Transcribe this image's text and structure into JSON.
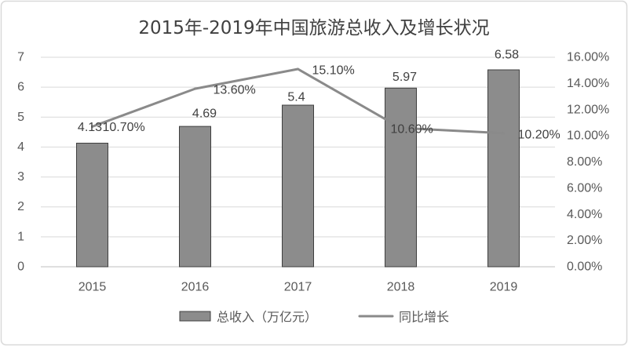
{
  "chart_data": {
    "type": "bar",
    "title": "2015年-2019年中国旅游总收入及增长状况",
    "categories": [
      "2015",
      "2016",
      "2017",
      "2018",
      "2019"
    ],
    "series": [
      {
        "name": "总收入（万亿元）",
        "type": "bar",
        "axis": "left",
        "values": [
          4.13,
          4.69,
          5.4,
          5.97,
          6.58
        ],
        "data_labels": [
          "4.13",
          "4.69",
          "5.4",
          "5.97",
          "6.58"
        ]
      },
      {
        "name": "同比增长",
        "type": "line",
        "axis": "right",
        "values": [
          10.7,
          13.6,
          15.1,
          10.6,
          10.2
        ],
        "data_labels": [
          "10.70%",
          "13.60%",
          "15.10%",
          "10.60%",
          "10.20%"
        ]
      }
    ],
    "y_left": {
      "ylim": [
        0,
        7
      ],
      "tick_labels": [
        "0",
        "1",
        "2",
        "3",
        "4",
        "5",
        "6",
        "7"
      ]
    },
    "y_right": {
      "ylim": [
        0,
        16
      ],
      "tick_labels": [
        "0.00%",
        "2.00%",
        "4.00%",
        "6.00%",
        "8.00%",
        "10.00%",
        "12.00%",
        "14.00%",
        "16.00%"
      ]
    },
    "xlabel": "",
    "ylabel": "",
    "grid": true,
    "legend": "bottom"
  },
  "colors": {
    "bar_fill": "#8c8c8c",
    "bar_stroke": "#3f3f3f",
    "line": "#8a8a8a",
    "grid": "#d9d9d9",
    "axis": "#bfbfbf",
    "border": "#d9d9d9"
  }
}
